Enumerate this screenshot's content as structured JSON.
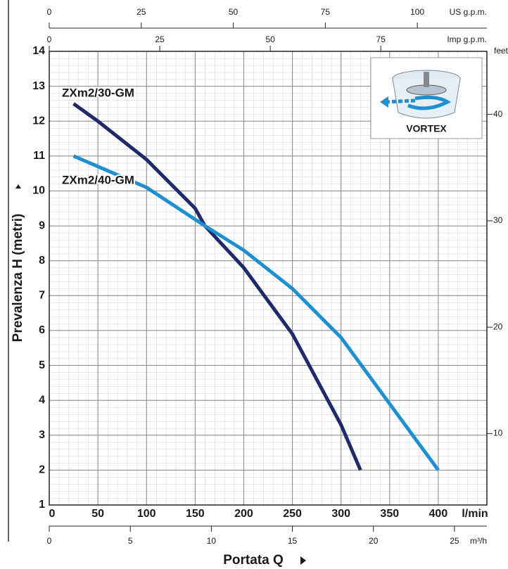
{
  "chart_data": {
    "type": "line",
    "x_label": "Portata Q",
    "y_label": "Prevalenza H (metri)",
    "x_unit": "l/min",
    "xlim": [
      0,
      450
    ],
    "xticks": [
      0,
      50,
      100,
      150,
      200,
      250,
      300,
      350,
      400
    ],
    "ylim": [
      1,
      14
    ],
    "yticks": [
      1,
      2,
      3,
      4,
      5,
      6,
      7,
      8,
      9,
      10,
      11,
      12,
      13,
      14
    ],
    "grid": true,
    "series": [
      {
        "name": "ZXm2/30-GM",
        "color": "#1f2a6b",
        "x": [
          25,
          50,
          100,
          150,
          160,
          200,
          250,
          300,
          320
        ],
        "values": [
          12.5,
          12.0,
          10.9,
          9.5,
          9.0,
          7.8,
          5.9,
          3.3,
          2.0
        ]
      },
      {
        "name": "ZXm2/40-GM",
        "color": "#1e8fd0",
        "x": [
          25,
          50,
          100,
          160,
          200,
          250,
          300,
          350,
          400
        ],
        "values": [
          11.0,
          10.7,
          10.1,
          9.0,
          8.3,
          7.2,
          5.8,
          3.9,
          2.0
        ]
      }
    ],
    "secondary_axes": [
      {
        "unit": "US g.p.m.",
        "position": "top",
        "lim": [
          0,
          118.9
        ],
        "ticks": [
          0,
          25,
          50,
          75,
          100
        ]
      },
      {
        "unit": "Imp g.p.m.",
        "position": "top2",
        "lim": [
          0,
          99
        ],
        "ticks": [
          0,
          25,
          50,
          75
        ]
      },
      {
        "unit": "m³/h",
        "position": "bottom",
        "lim": [
          0,
          27
        ],
        "ticks": [
          0,
          5,
          10,
          15,
          20,
          25
        ]
      },
      {
        "unit": "feet",
        "position": "right",
        "lim": [
          3.28,
          45.93
        ],
        "ticks": [
          10,
          20,
          30,
          40
        ]
      }
    ],
    "inset_label": "VORTEX"
  }
}
